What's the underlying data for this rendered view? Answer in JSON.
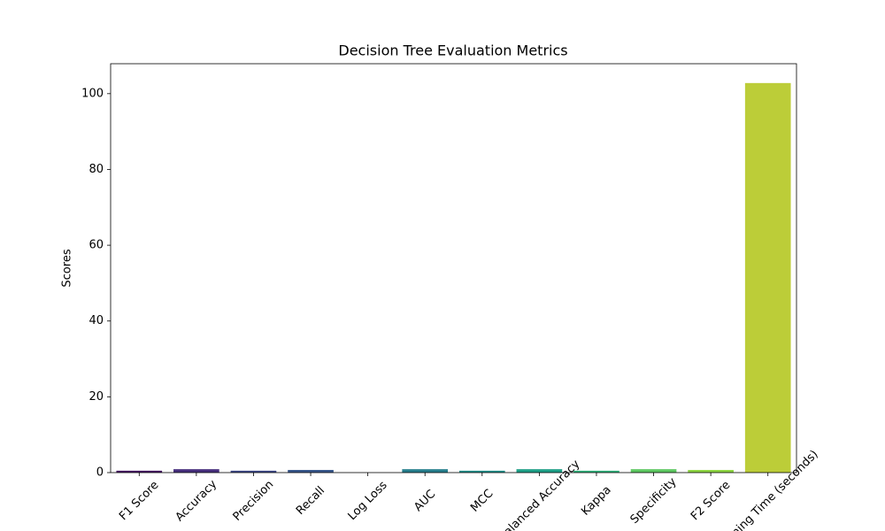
{
  "chart_data": {
    "type": "bar",
    "title": "Decision Tree Evaluation Metrics",
    "y_label": "Scores",
    "categories": [
      "F1 Score",
      "Accuracy",
      "Precision",
      "Recall",
      "Log Loss",
      "AUC",
      "MCC",
      "Balanced Accuracy",
      "Kappa",
      "Specificity",
      "F2 Score",
      "Training Time (seconds)"
    ],
    "values": [
      0.5,
      0.9,
      0.5,
      0.7,
      0,
      0.9,
      0.5,
      0.9,
      0.5,
      0.9,
      0.7,
      102.8
    ],
    "colors": [
      "#471365",
      "#472f7d",
      "#3e4989",
      "#38588c",
      "#2e6e8e",
      "#277f8e",
      "#21918c",
      "#1fa188",
      "#2fb47c",
      "#5ec962",
      "#8fd744",
      "#bccd38"
    ],
    "ylim": [
      0,
      107.9
    ],
    "yticks": [
      0,
      20,
      40,
      60,
      80,
      100
    ]
  }
}
